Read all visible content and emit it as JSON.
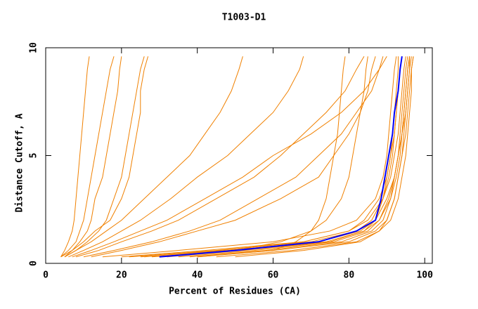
{
  "chart_data": {
    "type": "line",
    "title": "T1003-D1",
    "xlabel": "Percent of Residues (CA)",
    "ylabel": "Distance Cutoff, A",
    "xlim": [
      0,
      102
    ],
    "ylim": [
      0,
      10
    ],
    "xticks": [
      0,
      20,
      40,
      60,
      80,
      100
    ],
    "yticks": [
      0,
      5,
      10
    ],
    "color": "#f08000",
    "y": [
      0.3,
      0.6,
      1,
      1.5,
      2,
      3,
      4,
      5,
      6,
      7,
      8,
      9,
      9.6
    ],
    "series": [
      {
        "x": [
          4,
          5,
          6,
          7,
          7.5,
          8,
          8.5,
          9,
          9.5,
          10,
          10.5,
          11,
          11.5
        ]
      },
      {
        "x": [
          4,
          6,
          8,
          9,
          10,
          11,
          12,
          13,
          14,
          15,
          16,
          17,
          18
        ]
      },
      {
        "x": [
          5,
          7,
          9,
          11,
          12,
          13,
          15,
          16,
          17,
          18,
          19,
          19.5,
          20
        ]
      },
      {
        "x": [
          5,
          8,
          11,
          14,
          16,
          18,
          20,
          21,
          22,
          23,
          24,
          25,
          26
        ]
      },
      {
        "x": [
          4,
          7,
          10,
          13,
          17,
          20,
          22,
          23,
          24,
          25,
          25,
          26,
          27
        ]
      },
      {
        "x": [
          5,
          8,
          12,
          16,
          20,
          26,
          32,
          38,
          42,
          46,
          49,
          51,
          52
        ]
      },
      {
        "x": [
          6,
          10,
          15,
          20,
          25,
          33,
          40,
          48,
          54,
          60,
          64,
          67,
          68
        ]
      },
      {
        "x": [
          8,
          14,
          20,
          28,
          35,
          45,
          55,
          62,
          68,
          74,
          79,
          82,
          84
        ]
      },
      {
        "x": [
          7,
          12,
          18,
          25,
          32,
          42,
          52,
          60,
          70,
          78,
          84,
          88,
          90
        ]
      },
      {
        "x": [
          10,
          18,
          28,
          38,
          46,
          56,
          66,
          72,
          78,
          82,
          86,
          88,
          89
        ]
      },
      {
        "x": [
          12,
          20,
          30,
          40,
          50,
          62,
          72,
          76,
          80,
          83,
          85,
          86,
          87
        ]
      },
      {
        "x": [
          40,
          60,
          66,
          70,
          72,
          74,
          75,
          76,
          77,
          77.5,
          78,
          78.5,
          79
        ]
      },
      {
        "x": [
          30,
          50,
          62,
          70,
          74,
          78,
          80,
          81,
          82,
          83,
          84,
          84.5,
          85
        ]
      },
      {
        "x": [
          20,
          42,
          68,
          80,
          85,
          89,
          91,
          92,
          93,
          93.5,
          94,
          94.5,
          95
        ]
      },
      {
        "x": [
          25,
          48,
          72,
          83,
          87,
          90,
          92,
          93,
          94,
          94.5,
          95,
          95.5,
          96
        ]
      },
      {
        "x": [
          35,
          55,
          76,
          85,
          88,
          91,
          92.5,
          93.5,
          94,
          95,
          95.5,
          96,
          96.5
        ]
      },
      {
        "x": [
          28,
          50,
          74,
          84,
          88,
          90.5,
          92,
          93,
          93.5,
          94,
          94.5,
          95,
          95.5
        ]
      },
      {
        "x": [
          40,
          60,
          80,
          87,
          90,
          92,
          93,
          94,
          95,
          95.5,
          96,
          96.5,
          97
        ]
      },
      {
        "x": [
          22,
          45,
          70,
          82,
          86,
          89,
          90.5,
          91.5,
          92,
          92.5,
          93,
          93.5,
          94
        ]
      },
      {
        "x": [
          45,
          65,
          82,
          88,
          90,
          92,
          93,
          94,
          94.5,
          95,
          95.5,
          96,
          96
        ]
      },
      {
        "x": [
          32,
          52,
          75,
          84,
          87,
          89,
          90,
          91,
          91.5,
          92,
          92.5,
          93,
          93
        ]
      },
      {
        "x": [
          26,
          46,
          68,
          80,
          84,
          88,
          90,
          91,
          92,
          92.5,
          93,
          93.5,
          94
        ]
      },
      {
        "x": [
          38,
          58,
          78,
          86,
          89,
          91,
          92,
          93,
          94,
          94.5,
          95,
          95.5,
          96
        ]
      },
      {
        "x": [
          15,
          35,
          60,
          75,
          82,
          87,
          89,
          90,
          90.5,
          91,
          91.5,
          92,
          92.5
        ]
      },
      {
        "x": [
          50,
          68,
          83,
          88,
          91,
          93,
          94,
          95,
          95.5,
          96,
          96.5,
          96.5,
          97
        ]
      },
      {
        "x": [
          30,
          50,
          72,
          82,
          87,
          88.5,
          89.5,
          90.5,
          91.5,
          92,
          93,
          93.5,
          94
        ],
        "color": "#0000ff"
      }
    ]
  }
}
